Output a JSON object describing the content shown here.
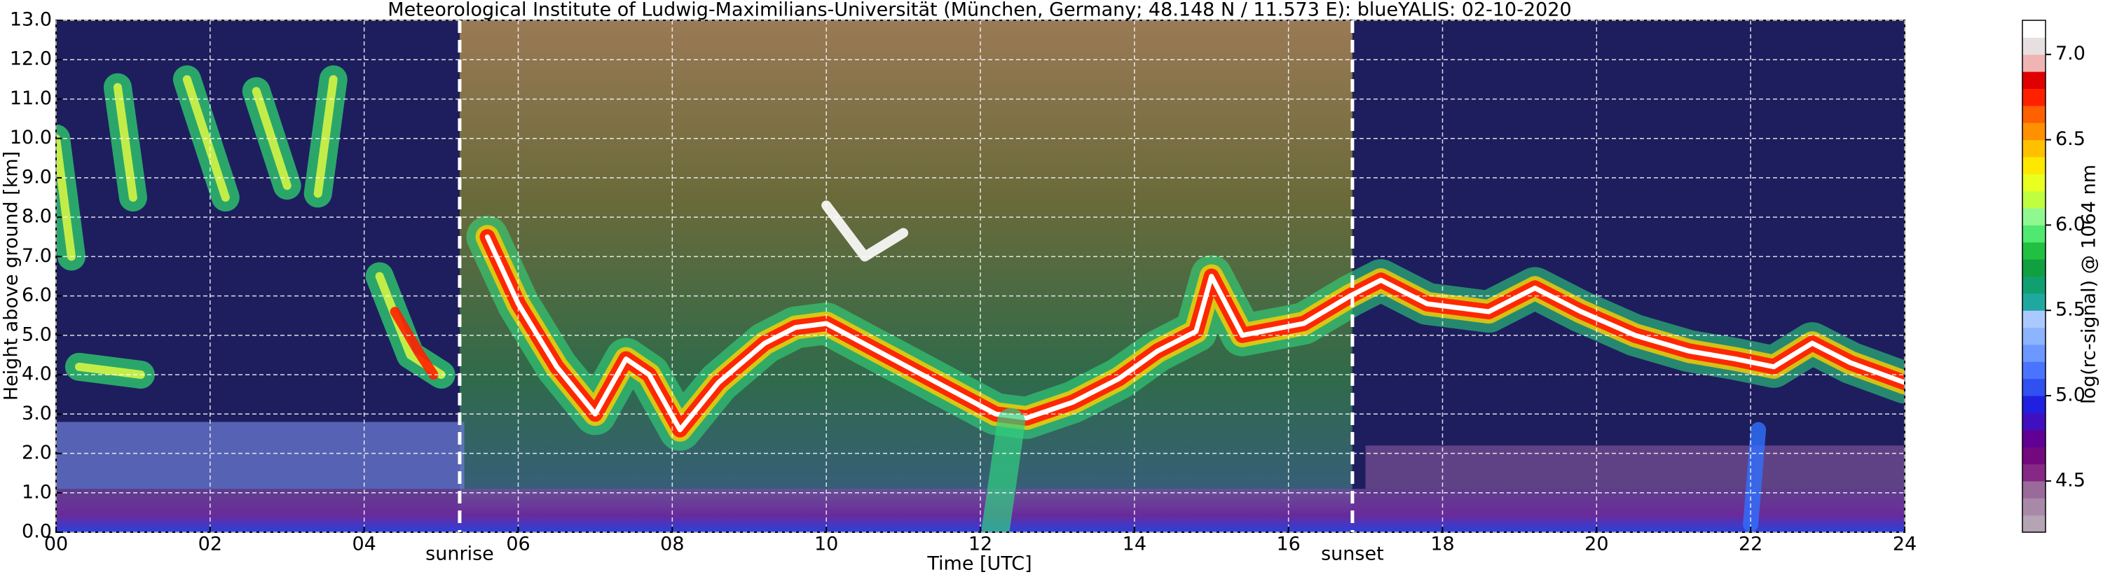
{
  "chart_data": {
    "type": "heatmap",
    "title": "Meteorological Institute of Ludwig-Maximilians-Universität (München, Germany; 48.148 N / 11.573 E):    blueYALIS: 02-10-2020",
    "xlabel": "Time [UTC]",
    "ylabel": "Height above ground [km]",
    "xlim": [
      0,
      24
    ],
    "ylim": [
      0,
      13
    ],
    "xticks": [
      {
        "value": 0,
        "label": "00"
      },
      {
        "value": 2,
        "label": "02"
      },
      {
        "value": 4,
        "label": "04"
      },
      {
        "value": 6,
        "label": "06"
      },
      {
        "value": 8,
        "label": "08"
      },
      {
        "value": 10,
        "label": "10"
      },
      {
        "value": 12,
        "label": "12"
      },
      {
        "value": 14,
        "label": "14"
      },
      {
        "value": 16,
        "label": "16"
      },
      {
        "value": 18,
        "label": "18"
      },
      {
        "value": 20,
        "label": "20"
      },
      {
        "value": 22,
        "label": "22"
      },
      {
        "value": 24,
        "label": "24"
      }
    ],
    "yticks": [
      {
        "value": 0,
        "label": "0.0"
      },
      {
        "value": 1,
        "label": "1.0"
      },
      {
        "value": 2,
        "label": "2.0"
      },
      {
        "value": 3,
        "label": "3.0"
      },
      {
        "value": 4,
        "label": "4.0"
      },
      {
        "value": 5,
        "label": "5.0"
      },
      {
        "value": 6,
        "label": "6.0"
      },
      {
        "value": 7,
        "label": "7.0"
      },
      {
        "value": 8,
        "label": "8.0"
      },
      {
        "value": 9,
        "label": "9.0"
      },
      {
        "value": 10,
        "label": "10.0"
      },
      {
        "value": 11,
        "label": "11.0"
      },
      {
        "value": 12,
        "label": "12.0"
      },
      {
        "value": 13,
        "label": "13.0"
      }
    ],
    "grid": true,
    "annotations": [
      {
        "label": "sunrise",
        "x": 5.24
      },
      {
        "label": "sunset",
        "x": 16.83
      }
    ],
    "colorbar": {
      "label": "log(rc-signal) @ 1064 nm",
      "lim": [
        4.2,
        7.2
      ],
      "ticks": [
        4.5,
        {
          "value": 5,
          "label": "5.0"
        },
        5.5,
        {
          "value": 6,
          "label": "6.0"
        },
        6.5,
        {
          "value": 7,
          "label": "7.0"
        }
      ],
      "colors": [
        "#b4a4b4",
        "#a88aa8",
        "#9a6a9a",
        "#862886",
        "#74087e",
        "#600094",
        "#4010c0",
        "#2020e0",
        "#3050f0",
        "#4a74ff",
        "#6c98ff",
        "#8cb4ff",
        "#aacaff",
        "#20a8a0",
        "#10a070",
        "#10a040",
        "#20c040",
        "#50e870",
        "#90f890",
        "#c0ff40",
        "#e8ff20",
        "#ffe800",
        "#ffc000",
        "#ff9000",
        "#ff6000",
        "#ff2000",
        "#e00000",
        "#f0b4b4",
        "#e8e0e0",
        "#ffffff"
      ]
    }
  }
}
